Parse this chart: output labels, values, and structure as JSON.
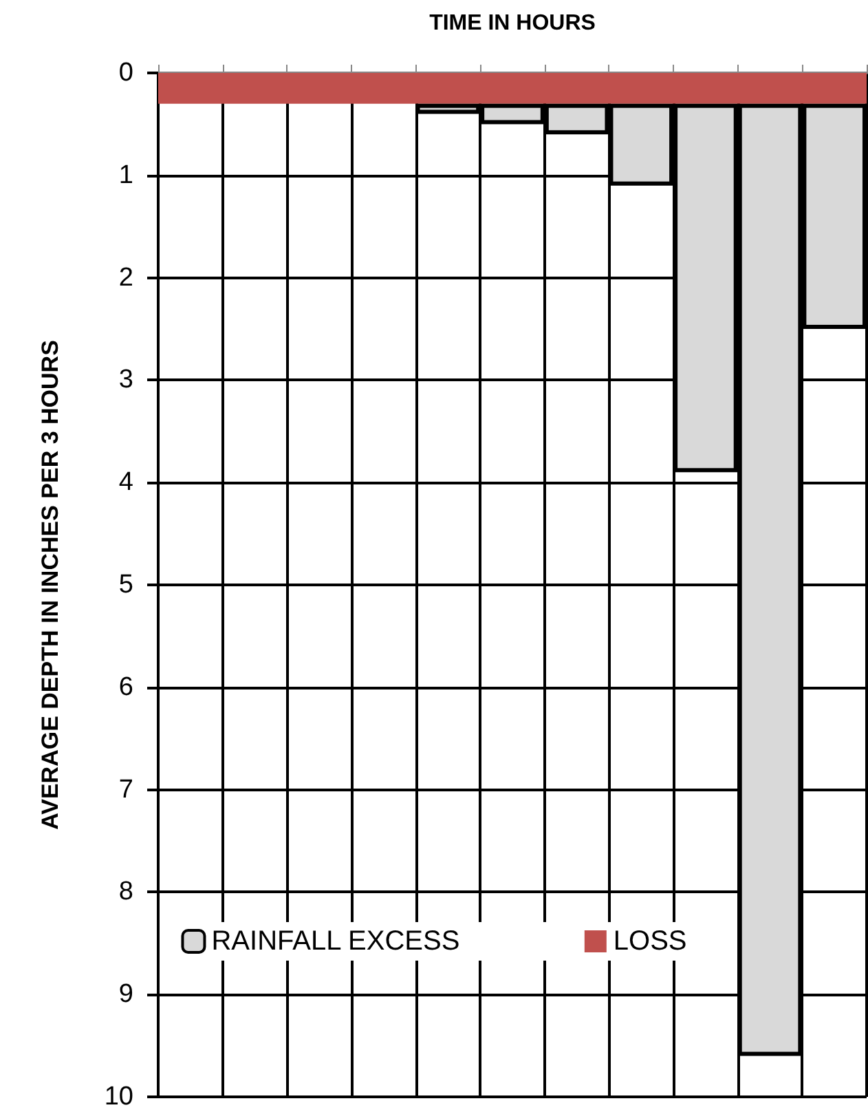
{
  "chart_data": {
    "type": "bar",
    "xlabel": "TIME IN HOURS",
    "ylabel": "AVERAGE DEPTH IN INCHES PER 3 HOURS",
    "categories": [
      null,
      null,
      null,
      null,
      null,
      null,
      null,
      null,
      null,
      null,
      null
    ],
    "series": [
      {
        "name": "RAINFALL EXCESS",
        "color": "#d9d9d9",
        "values": [
          null,
          null,
          null,
          null,
          0.1,
          0.2,
          0.3,
          0.8,
          3.6,
          9.3,
          2.2
        ],
        "base": [
          null,
          null,
          null,
          null,
          0.3,
          0.3,
          0.3,
          0.3,
          0.3,
          0.3,
          0.3
        ]
      }
    ],
    "bands": [
      {
        "axis": "y",
        "from": 0,
        "to": 0.3,
        "label": "LOSS",
        "color": "#c0504d"
      }
    ],
    "ylim": [
      10,
      0
    ],
    "yticks": [
      0,
      1,
      2,
      3,
      4,
      5,
      6,
      7,
      8,
      9,
      10
    ],
    "grid": true,
    "legend": "bottom",
    "tick_labels": "y"
  }
}
